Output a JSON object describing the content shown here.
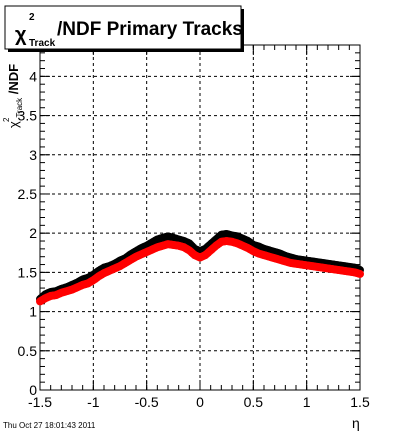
{
  "chart_data": {
    "type": "scatter",
    "title": "/NDF  Primary Tracks",
    "title_symbol": "χ",
    "title_sup": "2",
    "title_sub": "Track",
    "xlabel": "η",
    "ylabel_symbol": "χ",
    "ylabel_sup": "2",
    "ylabel_sub": "Track",
    "ylabel_suffix": "/NDF",
    "xlim": [
      -1.5,
      1.5
    ],
    "ylim": [
      0,
      4.4
    ],
    "x_ticks": [
      -1.5,
      -1,
      -0.5,
      0,
      0.5,
      1,
      1.5
    ],
    "x_tick_labels": [
      "-1.5",
      "-1",
      "-0.5",
      "0",
      "0.5",
      "1",
      "1.5"
    ],
    "y_ticks": [
      0,
      0.5,
      1,
      1.5,
      2,
      2.5,
      3,
      3.5,
      4
    ],
    "y_tick_labels": [
      "0",
      "0.5",
      "1",
      "1.5",
      "2",
      "2.5",
      "3",
      "3.5",
      "4"
    ],
    "grid": true,
    "series": [
      {
        "color": "#000000",
        "x": [
          -1.5,
          -1.45,
          -1.4,
          -1.35,
          -1.3,
          -1.25,
          -1.2,
          -1.15,
          -1.1,
          -1.05,
          -1.0,
          -0.95,
          -0.9,
          -0.85,
          -0.8,
          -0.75,
          -0.7,
          -0.65,
          -0.6,
          -0.55,
          -0.5,
          -0.45,
          -0.4,
          -0.35,
          -0.3,
          -0.25,
          -0.2,
          -0.15,
          -0.1,
          -0.05,
          0.0,
          0.05,
          0.1,
          0.15,
          0.2,
          0.25,
          0.3,
          0.35,
          0.4,
          0.45,
          0.5,
          0.55,
          0.6,
          0.65,
          0.7,
          0.75,
          0.8,
          0.85,
          0.9,
          0.95,
          1.0,
          1.05,
          1.1,
          1.15,
          1.2,
          1.25,
          1.3,
          1.35,
          1.4,
          1.45,
          1.5
        ],
        "y": [
          1.16,
          1.22,
          1.25,
          1.26,
          1.29,
          1.31,
          1.34,
          1.37,
          1.41,
          1.43,
          1.47,
          1.52,
          1.56,
          1.58,
          1.61,
          1.65,
          1.68,
          1.73,
          1.77,
          1.81,
          1.84,
          1.88,
          1.92,
          1.94,
          1.96,
          1.94,
          1.92,
          1.9,
          1.87,
          1.8,
          1.77,
          1.8,
          1.86,
          1.92,
          1.98,
          1.99,
          1.97,
          1.96,
          1.93,
          1.9,
          1.85,
          1.83,
          1.8,
          1.78,
          1.76,
          1.74,
          1.71,
          1.69,
          1.67,
          1.66,
          1.65,
          1.64,
          1.63,
          1.62,
          1.61,
          1.6,
          1.59,
          1.58,
          1.57,
          1.56,
          1.53
        ]
      },
      {
        "color": "#ff0000",
        "x": [
          -1.5,
          -1.45,
          -1.4,
          -1.35,
          -1.3,
          -1.25,
          -1.2,
          -1.15,
          -1.1,
          -1.05,
          -1.0,
          -0.95,
          -0.9,
          -0.85,
          -0.8,
          -0.75,
          -0.7,
          -0.65,
          -0.6,
          -0.55,
          -0.5,
          -0.45,
          -0.4,
          -0.35,
          -0.3,
          -0.25,
          -0.2,
          -0.15,
          -0.1,
          -0.05,
          0.0,
          0.05,
          0.1,
          0.15,
          0.2,
          0.25,
          0.3,
          0.35,
          0.4,
          0.45,
          0.5,
          0.55,
          0.6,
          0.65,
          0.7,
          0.75,
          0.8,
          0.85,
          0.9,
          0.95,
          1.0,
          1.05,
          1.1,
          1.15,
          1.2,
          1.25,
          1.3,
          1.35,
          1.4,
          1.45,
          1.5
        ],
        "y": [
          1.13,
          1.17,
          1.2,
          1.21,
          1.24,
          1.26,
          1.28,
          1.31,
          1.34,
          1.36,
          1.4,
          1.45,
          1.49,
          1.52,
          1.55,
          1.58,
          1.62,
          1.66,
          1.7,
          1.73,
          1.76,
          1.79,
          1.82,
          1.84,
          1.86,
          1.85,
          1.84,
          1.82,
          1.78,
          1.72,
          1.69,
          1.72,
          1.78,
          1.84,
          1.89,
          1.9,
          1.89,
          1.87,
          1.84,
          1.81,
          1.77,
          1.74,
          1.72,
          1.7,
          1.68,
          1.66,
          1.64,
          1.62,
          1.61,
          1.6,
          1.59,
          1.58,
          1.57,
          1.56,
          1.55,
          1.54,
          1.53,
          1.52,
          1.51,
          1.5,
          1.48
        ]
      }
    ]
  },
  "footer": {
    "timestamp": "Thu Oct 27 18:01:43 2011"
  }
}
